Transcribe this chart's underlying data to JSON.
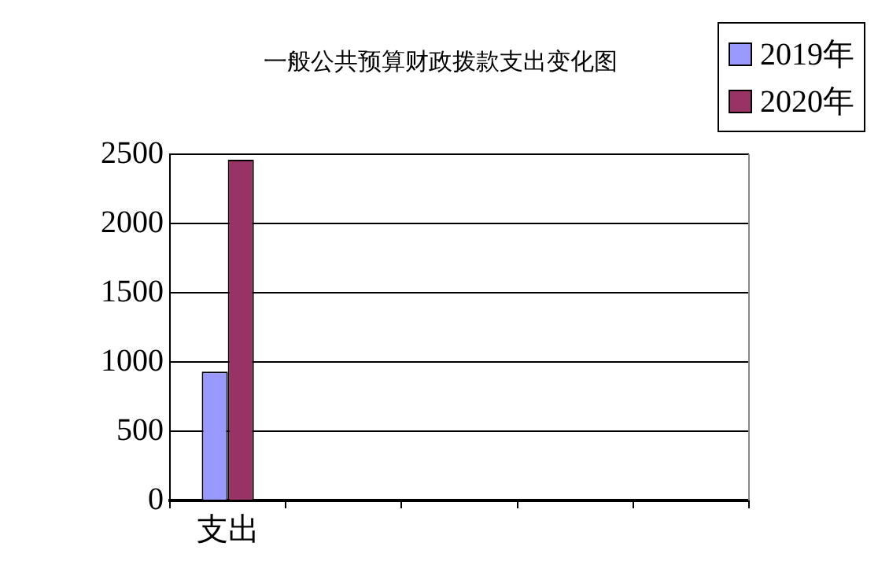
{
  "chart_data": {
    "type": "bar",
    "title": "一般公共预算财政拨款支出变化图",
    "categories": [
      "支出",
      null,
      null,
      null,
      null
    ],
    "series": [
      {
        "name": "2019年",
        "color": "#9999ff",
        "values": [
          930,
          null,
          null,
          null,
          null
        ]
      },
      {
        "name": "2020年",
        "color": "#993366",
        "values": [
          2460,
          null,
          null,
          null,
          null
        ]
      }
    ],
    "ylim": [
      0,
      2500
    ],
    "yticks": [
      0,
      500,
      1000,
      1500,
      2000,
      2500
    ],
    "grid": "y",
    "legend": "top right"
  }
}
